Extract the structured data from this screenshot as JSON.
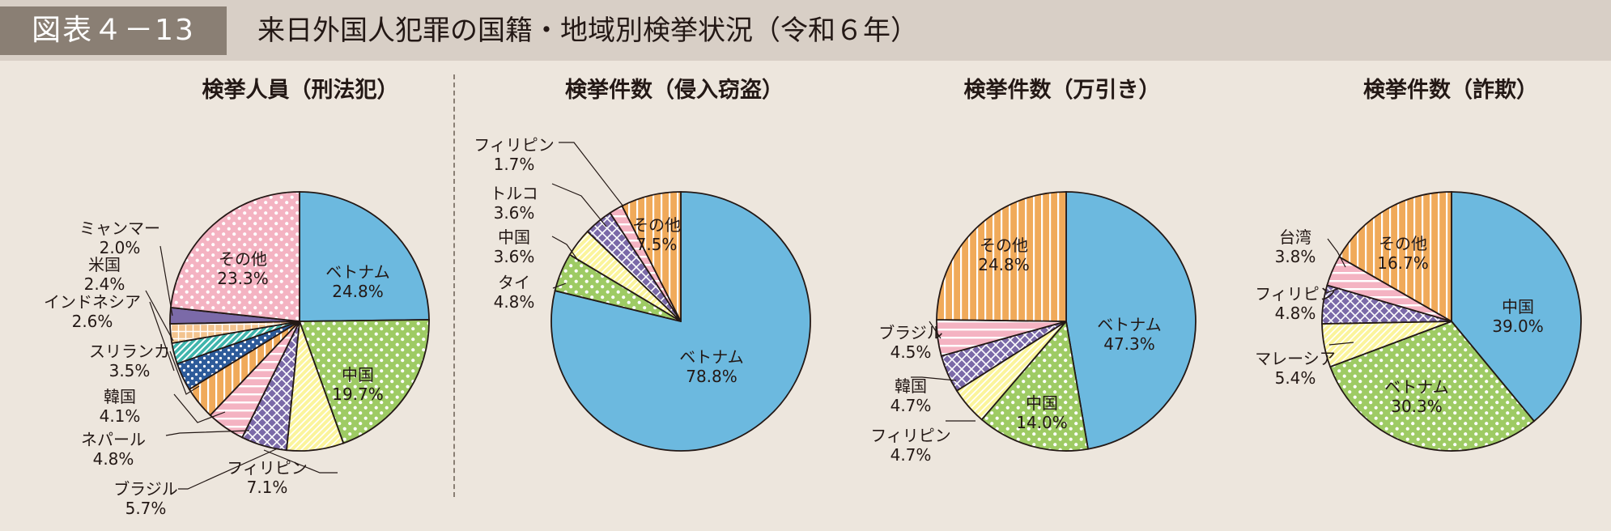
{
  "header": {
    "figure_label": "図表４－13",
    "title": "来日外国人犯罪の国籍・地域別検挙状況（令和６年）"
  },
  "colors": {
    "header_bg": "#d8cfc6",
    "label_bg": "#8a7f74",
    "page_bg": "#ede6dd",
    "blue": "#6cb9df",
    "green": "#9ecb64",
    "yellow": "#fbf49c",
    "purple": "#7b6aa8",
    "pink": "#f4b3c2",
    "orange": "#f0aa5a",
    "navy": "#2d5b9a",
    "teal": "#3fb5ac"
  },
  "chart_data": [
    {
      "type": "pie",
      "title": "検挙人員（刑法犯）",
      "slices": [
        {
          "label": "ベトナム",
          "value": 24.8,
          "pct_text": "24.8%",
          "fill": "blue",
          "label_inside": true
        },
        {
          "label": "中国",
          "value": 19.7,
          "pct_text": "19.7%",
          "fill": "green-dots",
          "label_inside": true
        },
        {
          "label": "フィリピン",
          "value": 7.1,
          "pct_text": "7.1%",
          "fill": "yellow-hatch"
        },
        {
          "label": "ブラジル",
          "value": 5.7,
          "pct_text": "5.7%",
          "fill": "purple-cross"
        },
        {
          "label": "ネパール",
          "value": 4.8,
          "pct_text": "4.8%",
          "fill": "pink-stripes"
        },
        {
          "label": "韓国",
          "value": 4.1,
          "pct_text": "4.1%",
          "fill": "orange-stripes"
        },
        {
          "label": "スリランカ",
          "value": 3.5,
          "pct_text": "3.5%",
          "fill": "navy-dots"
        },
        {
          "label": "インドネシア",
          "value": 2.6,
          "pct_text": "2.6%",
          "fill": "teal-stripes"
        },
        {
          "label": "米国",
          "value": 2.4,
          "pct_text": "2.4%",
          "fill": "orange-grid"
        },
        {
          "label": "ミャンマー",
          "value": 2.0,
          "pct_text": "2.0%",
          "fill": "purple"
        },
        {
          "label": "その他",
          "value": 23.3,
          "pct_text": "23.3%",
          "fill": "pink-dots",
          "label_inside": true
        }
      ]
    },
    {
      "type": "pie",
      "title": "検挙件数（侵入窃盗）",
      "slices": [
        {
          "label": "ベトナム",
          "value": 78.8,
          "pct_text": "78.8%",
          "fill": "blue",
          "label_inside": true
        },
        {
          "label": "タイ",
          "value": 4.8,
          "pct_text": "4.8%",
          "fill": "green-dots"
        },
        {
          "label": "中国",
          "value": 3.6,
          "pct_text": "3.6%",
          "fill": "yellow-hatch"
        },
        {
          "label": "トルコ",
          "value": 3.6,
          "pct_text": "3.6%",
          "fill": "purple-cross"
        },
        {
          "label": "フィリピン",
          "value": 1.7,
          "pct_text": "1.7%",
          "fill": "pink-stripes"
        },
        {
          "label": "その他",
          "value": 7.5,
          "pct_text": "7.5%",
          "fill": "orange-stripes",
          "label_inside": true
        }
      ]
    },
    {
      "type": "pie",
      "title": "検挙件数（万引き）",
      "slices": [
        {
          "label": "ベトナム",
          "value": 47.3,
          "pct_text": "47.3%",
          "fill": "blue",
          "label_inside": true
        },
        {
          "label": "中国",
          "value": 14.0,
          "pct_text": "14.0%",
          "fill": "green-dots",
          "label_inside": true
        },
        {
          "label": "フィリピン",
          "value": 4.7,
          "pct_text": "4.7%",
          "fill": "yellow-hatch"
        },
        {
          "label": "韓国",
          "value": 4.7,
          "pct_text": "4.7%",
          "fill": "purple-cross"
        },
        {
          "label": "ブラジル",
          "value": 4.5,
          "pct_text": "4.5%",
          "fill": "pink-stripes"
        },
        {
          "label": "その他",
          "value": 24.8,
          "pct_text": "24.8%",
          "fill": "orange-stripes",
          "label_inside": true
        }
      ]
    },
    {
      "type": "pie",
      "title": "検挙件数（詐欺）",
      "slices": [
        {
          "label": "中国",
          "value": 39.0,
          "pct_text": "39.0%",
          "fill": "blue",
          "label_inside": true
        },
        {
          "label": "ベトナム",
          "value": 30.3,
          "pct_text": "30.3%",
          "fill": "green-dots",
          "label_inside": true
        },
        {
          "label": "マレーシア",
          "value": 5.4,
          "pct_text": "5.4%",
          "fill": "yellow-hatch"
        },
        {
          "label": "フィリピン",
          "value": 4.8,
          "pct_text": "4.8%",
          "fill": "purple-cross"
        },
        {
          "label": "台湾",
          "value": 3.8,
          "pct_text": "3.8%",
          "fill": "pink-stripes"
        },
        {
          "label": "その他",
          "value": 16.7,
          "pct_text": "16.7%",
          "fill": "orange-stripes",
          "label_inside": true
        }
      ]
    }
  ]
}
